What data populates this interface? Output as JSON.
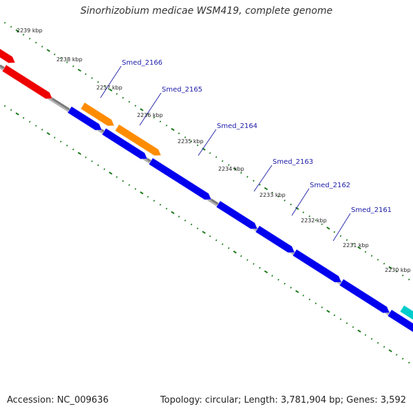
{
  "title": "Sinorhizobium medicae WSM419, complete genome",
  "footer": {
    "accession": "Accession: NC_009636",
    "stats": "Topology: circular; Length: 3,781,904 bp; Genes: 3,592"
  },
  "colors": {
    "backbone": "#808080",
    "tick": "#1a7a1a",
    "gene_label": "#1a1aa6",
    "forward_cds": "#0000ee",
    "reverse_cds": "#ff8c00",
    "red_feature": "#ee0000",
    "cyan_feature": "#00cccc"
  },
  "ruler": {
    "unit": "kbp",
    "labels": [
      {
        "kbp": 2239,
        "text": "2239 kbp"
      },
      {
        "kbp": 2238,
        "text": "2238 kbp"
      },
      {
        "kbp": 2237,
        "text": "2237 kbp"
      },
      {
        "kbp": 2236,
        "text": "2236 kbp"
      },
      {
        "kbp": 2235,
        "text": "2235 kbp"
      },
      {
        "kbp": 2234,
        "text": "2234 kbp"
      },
      {
        "kbp": 2233,
        "text": "2233 kbp"
      },
      {
        "kbp": 2232,
        "text": "2232 kbp"
      },
      {
        "kbp": 2231,
        "text": "2231 kbp"
      },
      {
        "kbp": 2230,
        "text": "2230 kbp"
      }
    ]
  },
  "genes": [
    {
      "name": "Smed_2166"
    },
    {
      "name": "Smed_2165"
    },
    {
      "name": "Smed_2164"
    },
    {
      "name": "Smed_2163"
    },
    {
      "name": "Smed_2162"
    },
    {
      "name": "Smed_2161"
    }
  ]
}
